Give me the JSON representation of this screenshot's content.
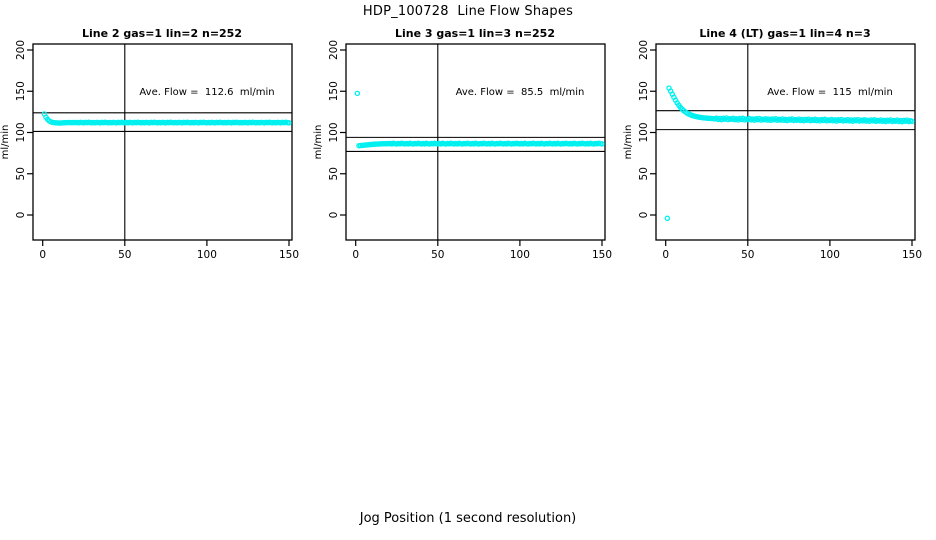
{
  "title": "HDP_100728  Line Flow Shapes",
  "xlabel": "Jog Position (1 second resolution)",
  "colors": {
    "points": "#00F0F0",
    "axis": "#000000",
    "background": "#FFFFFF"
  },
  "chart_data": [
    {
      "type": "scatter",
      "title": "Line 2 gas=1 lin=2 n=252",
      "annotation": "Ave. Flow =  112.6  ml/min",
      "ave_flow": 112.6,
      "ylabel": "ml/min",
      "xlim": [
        0,
        150
      ],
      "ylim": [
        0,
        200
      ],
      "x_ticks": [
        0,
        50,
        100,
        150
      ],
      "y_ticks": [
        0,
        50,
        100,
        150,
        200
      ],
      "hlines": [
        123.9,
        101.3
      ],
      "vline": 50,
      "points": {
        "x_start": 1,
        "x_step": 1,
        "y": [
          122.5,
          118.5,
          115.8,
          114.0,
          112.9,
          112.3,
          111.9,
          111.7,
          111.6,
          111.5,
          111.5,
          111.6,
          111.8,
          111.9,
          112.0,
          112.1,
          112.0,
          111.9,
          112.1,
          112.0,
          112.1,
          111.8,
          112.3,
          112.0,
          111.7,
          112.2,
          111.9,
          112.4,
          112.0,
          111.8,
          112.1,
          111.8,
          112.3,
          112.0,
          111.7,
          112.2,
          111.9,
          112.4,
          112.0,
          111.8,
          112.1,
          111.8,
          112.3,
          112.0,
          111.7,
          112.2,
          111.9,
          112.4,
          112.0,
          111.8,
          112.1,
          111.8,
          112.3,
          112.0,
          111.7,
          112.2,
          111.9,
          112.4,
          112.0,
          111.8,
          112.1,
          111.8,
          112.3,
          112.0,
          111.7,
          112.2,
          111.9,
          112.4,
          112.0,
          111.8,
          112.1,
          111.8,
          112.3,
          112.0,
          111.7,
          112.2,
          111.9,
          112.4,
          112.0,
          111.8,
          112.1,
          111.8,
          112.3,
          112.0,
          111.7,
          112.2,
          111.9,
          112.4,
          112.0,
          111.8,
          112.1,
          111.8,
          112.3,
          112.0,
          111.7,
          112.2,
          111.9,
          112.4,
          112.0,
          111.8,
          112.1,
          111.8,
          112.3,
          112.0,
          111.7,
          112.2,
          111.9,
          112.4,
          112.0,
          111.8,
          112.1,
          111.8,
          112.3,
          112.0,
          111.7,
          112.2,
          111.9,
          112.4,
          112.0,
          111.8,
          112.1,
          111.8,
          112.3,
          112.0,
          111.7,
          112.2,
          111.9,
          112.4,
          112.0,
          111.8,
          112.1,
          111.8,
          112.3,
          112.0,
          111.7,
          112.2,
          111.9,
          112.4,
          112.0,
          111.8,
          112.1,
          111.8,
          112.3,
          112.0,
          111.7,
          112.2,
          111.9,
          112.4,
          112.0,
          111.8
        ]
      }
    },
    {
      "type": "scatter",
      "title": "Line 3 gas=1 lin=3 n=252",
      "annotation": "Ave. Flow =  85.5  ml/min",
      "ave_flow": 85.5,
      "ylabel": "ml/min",
      "xlim": [
        0,
        150
      ],
      "ylim": [
        0,
        200
      ],
      "x_ticks": [
        0,
        50,
        100,
        150
      ],
      "y_ticks": [
        0,
        50,
        100,
        150,
        200
      ],
      "hlines": [
        94.1,
        77.0
      ],
      "vline": 50,
      "points": {
        "x_start": 1,
        "x_step": 1,
        "y": [
          147.5,
          84.0,
          84.2,
          84.4,
          84.6,
          84.8,
          85.0,
          85.2,
          85.4,
          85.6,
          85.8,
          85.9,
          86.0,
          86.1,
          86.2,
          86.3,
          86.4,
          86.4,
          86.5,
          86.5,
          86.6,
          86.2,
          86.9,
          86.4,
          86.1,
          86.7,
          86.3,
          87.0,
          86.5,
          86.2,
          86.6,
          86.2,
          86.9,
          86.4,
          86.1,
          86.7,
          86.3,
          87.0,
          86.5,
          86.2,
          86.6,
          86.2,
          86.9,
          86.4,
          86.1,
          86.7,
          86.3,
          87.0,
          86.5,
          86.2,
          86.6,
          86.2,
          86.9,
          86.4,
          86.1,
          86.7,
          86.3,
          87.0,
          86.5,
          86.2,
          86.6,
          86.2,
          86.9,
          86.4,
          86.1,
          86.7,
          86.3,
          87.0,
          86.5,
          86.2,
          86.6,
          86.2,
          86.9,
          86.4,
          86.1,
          86.7,
          86.3,
          87.0,
          86.5,
          86.2,
          86.6,
          86.2,
          86.9,
          86.4,
          86.1,
          86.7,
          86.3,
          87.0,
          86.5,
          86.2,
          86.6,
          86.2,
          86.9,
          86.4,
          86.1,
          86.7,
          86.3,
          87.0,
          86.5,
          86.2,
          86.6,
          86.2,
          86.9,
          86.4,
          86.1,
          86.7,
          86.3,
          87.0,
          86.5,
          86.2,
          86.6,
          86.2,
          86.9,
          86.4,
          86.1,
          86.7,
          86.3,
          87.0,
          86.5,
          86.2,
          86.6,
          86.2,
          86.9,
          86.4,
          86.1,
          86.7,
          86.3,
          87.0,
          86.5,
          86.2,
          86.6,
          86.2,
          86.9,
          86.4,
          86.1,
          86.7,
          86.3,
          87.0,
          86.5,
          86.2,
          86.6,
          86.2,
          86.9,
          86.4,
          86.1,
          86.7,
          86.3,
          87.0,
          86.5,
          86.2
        ]
      }
    },
    {
      "type": "scatter",
      "title": "Line 4 (LT) gas=1 lin=4 n=3",
      "annotation": "Ave. Flow =  115  ml/min",
      "ave_flow": 115,
      "ylabel": "ml/min",
      "xlim": [
        0,
        150
      ],
      "ylim": [
        0,
        200
      ],
      "x_ticks": [
        0,
        50,
        100,
        150
      ],
      "y_ticks": [
        0,
        50,
        100,
        150,
        200
      ],
      "hlines": [
        126.5,
        103.5
      ],
      "vline": 50,
      "points": {
        "x_start": 1,
        "x_step": 1,
        "y": [
          -4.0,
          153.8,
          150.2,
          146.5,
          142.8,
          139.2,
          135.9,
          133.0,
          130.4,
          128.2,
          126.4,
          124.9,
          123.6,
          122.5,
          121.6,
          120.8,
          120.1,
          119.6,
          119.1,
          118.7,
          118.4,
          118.1,
          117.8,
          117.6,
          117.4,
          117.2,
          117.1,
          116.9,
          116.8,
          116.7,
          117.5,
          115.9,
          117.0,
          115.6,
          117.2,
          116.2,
          117.6,
          115.7,
          116.7,
          116.0,
          117.2,
          115.5,
          116.6,
          115.2,
          116.9,
          115.9,
          117.2,
          115.3,
          116.4,
          115.6,
          116.9,
          115.3,
          116.4,
          115.0,
          116.6,
          115.6,
          117.0,
          115.1,
          116.1,
          115.4,
          116.7,
          115.1,
          116.2,
          114.8,
          116.4,
          115.4,
          116.7,
          114.9,
          115.9,
          115.1,
          116.4,
          114.8,
          115.9,
          114.5,
          116.1,
          115.1,
          116.5,
          114.6,
          115.6,
          114.9,
          116.2,
          114.6,
          115.7,
          114.3,
          115.9,
          114.9,
          116.2,
          114.4,
          115.4,
          114.7,
          116.0,
          114.4,
          115.5,
          114.1,
          115.7,
          114.7,
          116.0,
          114.2,
          115.2,
          114.5,
          115.8,
          114.2,
          115.3,
          113.9,
          115.5,
          114.5,
          115.8,
          114.0,
          115.0,
          114.3,
          115.6,
          114.0,
          115.1,
          113.7,
          115.3,
          114.3,
          115.6,
          113.8,
          114.8,
          114.1,
          115.4,
          113.8,
          114.9,
          113.5,
          115.1,
          114.1,
          115.4,
          113.6,
          114.6,
          113.9,
          115.2,
          113.6,
          114.7,
          113.3,
          114.9,
          113.9,
          115.2,
          113.4,
          114.4,
          113.7,
          115.0,
          113.4,
          114.5,
          113.1,
          114.7,
          113.7,
          115.0,
          113.2,
          114.2,
          113.5
        ]
      }
    }
  ]
}
